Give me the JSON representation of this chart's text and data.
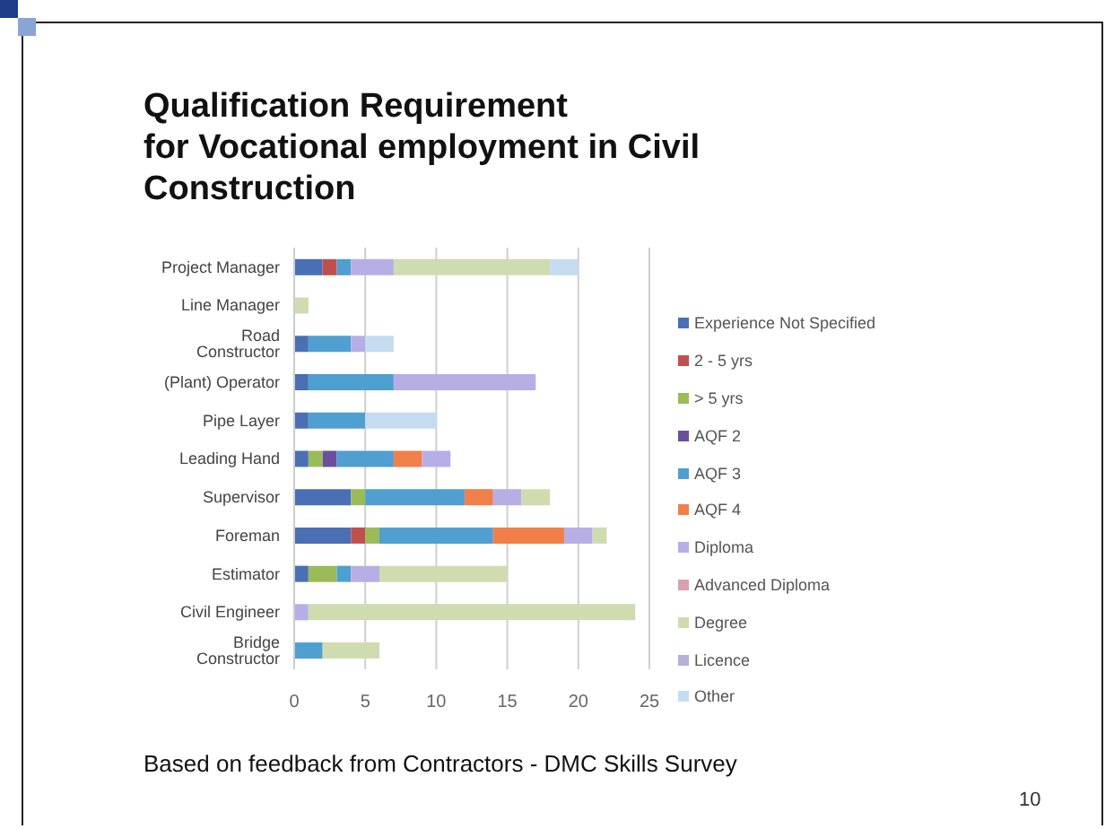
{
  "chart_data": {
    "type": "bar",
    "orientation": "horizontal",
    "stacked": true,
    "title": "Qualification Requirement\nfor Vocational employment in Civil Construction",
    "categories": [
      "Project Manager",
      "Line Manager",
      "Road Constructor",
      "(Plant) Operator",
      "Pipe Layer",
      "Leading Hand",
      "Supervisor",
      "Foreman",
      "Estimator",
      "Civil Engineer",
      "Bridge Constructor"
    ],
    "series": [
      {
        "name": "Experience Not Specified",
        "color": "#4a6fb5",
        "values": [
          2,
          null,
          1,
          1,
          1,
          1,
          4,
          4,
          1,
          null,
          null
        ]
      },
      {
        "name": "2 - 5 yrs",
        "color": "#c0504d",
        "values": [
          1,
          null,
          null,
          null,
          null,
          null,
          null,
          1,
          null,
          null,
          null
        ]
      },
      {
        "name": "> 5 yrs",
        "color": "#9bbb59",
        "values": [
          null,
          null,
          null,
          null,
          null,
          1,
          1,
          1,
          2,
          null,
          null
        ]
      },
      {
        "name": "AQF 2",
        "color": "#6b4f9a",
        "values": [
          null,
          null,
          null,
          null,
          null,
          1,
          null,
          null,
          null,
          null,
          null
        ]
      },
      {
        "name": "AQF 3",
        "color": "#4f9fd0",
        "values": [
          1,
          null,
          3,
          6,
          4,
          4,
          7,
          8,
          1,
          null,
          2
        ]
      },
      {
        "name": "AQF 4",
        "color": "#f07f4a",
        "values": [
          null,
          null,
          null,
          null,
          null,
          2,
          2,
          5,
          null,
          null,
          null
        ]
      },
      {
        "name": "Diploma",
        "color": "#b8aee6",
        "values": [
          3,
          null,
          1,
          10,
          null,
          2,
          2,
          2,
          2,
          1,
          null
        ]
      },
      {
        "name": "Advanced Diploma",
        "color": "#d9a0b0",
        "values": [
          null,
          null,
          null,
          null,
          null,
          null,
          null,
          null,
          null,
          null,
          null
        ]
      },
      {
        "name": "Degree",
        "color": "#cfdcb0",
        "values": [
          11,
          1,
          null,
          null,
          null,
          null,
          2,
          1,
          9,
          23,
          4
        ]
      },
      {
        "name": "Licence",
        "color": "#b7b0d8",
        "values": [
          null,
          null,
          null,
          null,
          null,
          null,
          null,
          null,
          null,
          null,
          null
        ]
      },
      {
        "name": "Other",
        "color": "#c5dcf0",
        "values": [
          2,
          null,
          2,
          null,
          5,
          null,
          null,
          null,
          null,
          null,
          null
        ]
      }
    ],
    "xlim": [
      0,
      25
    ],
    "xticks": [
      0,
      5,
      10,
      15,
      20,
      25
    ],
    "grid": "x",
    "legend": "right",
    "annotations": [
      "Based on feedback from Contractors  - DMC Skills Survey",
      "10"
    ]
  }
}
